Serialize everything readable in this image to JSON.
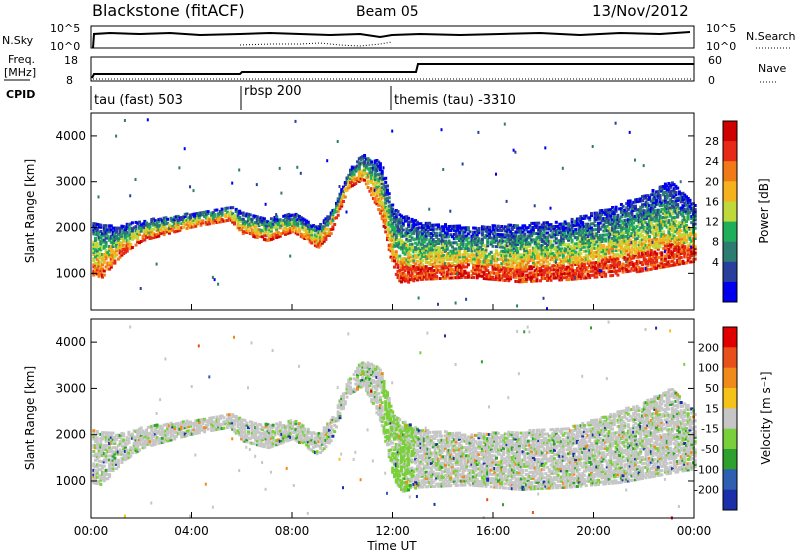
{
  "header": {
    "title": "Blackstone (fitACF)",
    "beam": "Beam 05",
    "date": "13/Nov/2012"
  },
  "top_panels": {
    "nsky_label": "N.Sky",
    "nsky_ticks": [
      "10^5",
      "10^0"
    ],
    "nsearch_label": "N.Search",
    "freq_label": "Freq.",
    "freq_unit": "[MHz]",
    "freq_ticks": [
      "18",
      "8"
    ],
    "nave_ticks": [
      "60",
      "0"
    ],
    "nave_label": "Nave",
    "cpid_label": "CPID",
    "cpid_segments": [
      {
        "label": "tau (fast) 503",
        "start": 0.0
      },
      {
        "label": "rbsp 200",
        "start": 6.0
      },
      {
        "label": "themis (tau) -3310",
        "start": 12.0
      }
    ]
  },
  "chart_data": [
    {
      "type": "heatmap",
      "name": "power-panel",
      "ylabel": "Slant Range [km]",
      "x_range": [
        0,
        24
      ],
      "ylim": [
        200,
        4500
      ],
      "y_ticks": [
        1000,
        2000,
        3000,
        4000
      ],
      "colorbar": {
        "label": "Power [dB]",
        "ticks": [
          "28",
          "24",
          "20",
          "16",
          "12",
          "8",
          "4"
        ],
        "colors": [
          "#0000ee",
          "#2a3f9c",
          "#2c7c72",
          "#1fae5a",
          "#bfd83a",
          "#f6b21e",
          "#f07a17",
          "#e62a17",
          "#cf0000"
        ]
      }
    },
    {
      "type": "heatmap",
      "name": "velocity-panel",
      "ylabel": "Slant Range [km]",
      "x_range": [
        0,
        24
      ],
      "ylim": [
        200,
        4500
      ],
      "y_ticks": [
        1000,
        2000,
        3000,
        4000
      ],
      "colorbar": {
        "label": "Velocity [m s⁻¹]",
        "ticks": [
          "200",
          "100",
          "50",
          "15",
          "-15",
          "-50",
          "-100",
          "-200"
        ],
        "colors": [
          "#1a2fa8",
          "#2e5fb0",
          "#2ea02e",
          "#7ad03a",
          "#c6c6c6",
          "#f5c21a",
          "#f08a1a",
          "#e8501a",
          "#e00000"
        ]
      }
    }
  ],
  "x_axis": {
    "title": "Time UT",
    "ticks": [
      "00:00",
      "04:00",
      "08:00",
      "12:00",
      "16:00",
      "20:00",
      "00:00"
    ]
  }
}
